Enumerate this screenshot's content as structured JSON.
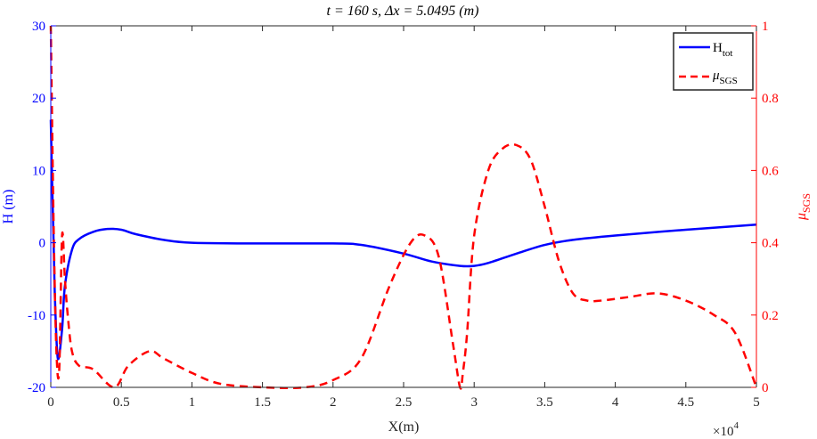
{
  "chart_data": {
    "type": "line",
    "title": "t = 160 s,  Δx = 5.0495 (m)",
    "xlabel": "X(m)",
    "x_exponent": "×10",
    "x_exponent_power": "4",
    "xlim": [
      0,
      5
    ],
    "xticks": [
      "0",
      "0.5",
      "1",
      "1.5",
      "2",
      "2.5",
      "3",
      "3.5",
      "4",
      "4.5",
      "5"
    ],
    "y_left": {
      "label": "H (m)",
      "lim": [
        -20,
        30
      ],
      "ticks": [
        "-20",
        "-10",
        "0",
        "10",
        "20",
        "30"
      ],
      "color": "#0000ff"
    },
    "y_right": {
      "label_main": "μ",
      "label_sub": "SGS",
      "lim": [
        0,
        1
      ],
      "ticks": [
        "0",
        "0.2",
        "0.4",
        "0.6",
        "0.8",
        "1"
      ],
      "color": "#ff0000"
    },
    "legend_position": "top-right",
    "series": [
      {
        "name": "H",
        "name_sub": "tot",
        "axis": "left",
        "color": "#0000ff",
        "style": "solid",
        "x": [
          0,
          0.01,
          0.02,
          0.03,
          0.05,
          0.08,
          0.1,
          0.15,
          0.2,
          0.3,
          0.4,
          0.5,
          0.6,
          0.8,
          1.0,
          1.5,
          2.0,
          2.2,
          2.5,
          2.7,
          2.9,
          3.0,
          3.1,
          3.3,
          3.5,
          3.7,
          4.0,
          4.5,
          5.0
        ],
        "y": [
          17,
          8,
          0,
          -8,
          -16,
          -12,
          -6,
          -1,
          0.5,
          1.5,
          1.9,
          1.8,
          1.2,
          0.4,
          0.0,
          -0.1,
          -0.1,
          -0.3,
          -1.5,
          -2.6,
          -3.2,
          -3.2,
          -2.8,
          -1.5,
          -0.3,
          0.4,
          1.0,
          1.8,
          2.5
        ]
      },
      {
        "name": "μ",
        "name_sub": "SGS",
        "axis": "right",
        "color": "#ff0000",
        "style": "dashed",
        "x": [
          0,
          0.02,
          0.04,
          0.06,
          0.08,
          0.1,
          0.12,
          0.15,
          0.2,
          0.3,
          0.45,
          0.55,
          0.7,
          0.8,
          1.0,
          1.2,
          1.5,
          1.8,
          2.0,
          2.2,
          2.4,
          2.55,
          2.65,
          2.75,
          2.85,
          2.9,
          2.92,
          2.95,
          3.0,
          3.1,
          3.2,
          3.3,
          3.4,
          3.5,
          3.6,
          3.7,
          3.8,
          3.9,
          4.1,
          4.3,
          4.5,
          4.7,
          4.85,
          5.0
        ],
        "y": [
          1.0,
          0.45,
          0.1,
          0.05,
          0.42,
          0.3,
          0.2,
          0.1,
          0.06,
          0.05,
          0.0,
          0.06,
          0.1,
          0.08,
          0.04,
          0.01,
          0.0,
          0.0,
          0.02,
          0.08,
          0.28,
          0.4,
          0.42,
          0.36,
          0.12,
          0.0,
          0.04,
          0.15,
          0.42,
          0.6,
          0.66,
          0.67,
          0.63,
          0.5,
          0.35,
          0.26,
          0.24,
          0.24,
          0.25,
          0.26,
          0.24,
          0.2,
          0.15,
          0.0
        ]
      }
    ]
  }
}
